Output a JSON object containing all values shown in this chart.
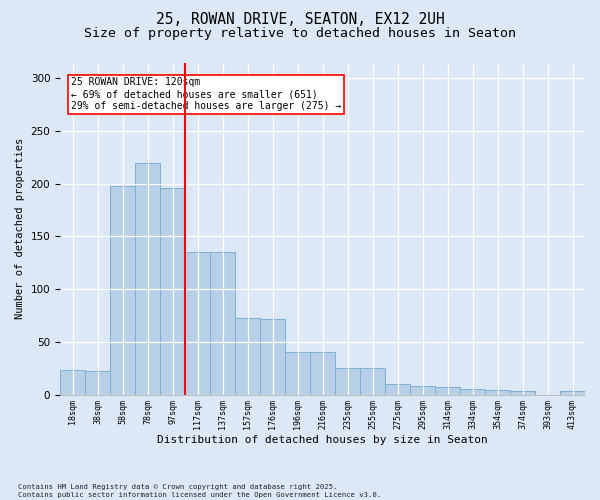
{
  "title1": "25, ROWAN DRIVE, SEATON, EX12 2UH",
  "title2": "Size of property relative to detached houses in Seaton",
  "xlabel": "Distribution of detached houses by size in Seaton",
  "ylabel": "Number of detached properties",
  "categories": [
    "18sqm",
    "38sqm",
    "58sqm",
    "78sqm",
    "97sqm",
    "117sqm",
    "137sqm",
    "157sqm",
    "176sqm",
    "196sqm",
    "216sqm",
    "235sqm",
    "255sqm",
    "275sqm",
    "295sqm",
    "314sqm",
    "334sqm",
    "354sqm",
    "374sqm",
    "393sqm",
    "413sqm"
  ],
  "values": [
    23,
    22,
    198,
    220,
    196,
    135,
    135,
    73,
    72,
    40,
    40,
    25,
    25,
    10,
    8,
    7,
    5,
    4,
    3,
    0,
    3
  ],
  "bar_color": "#b8cfe8",
  "bar_edge_color": "#7aafd4",
  "vline_x": 4.5,
  "vline_color": "red",
  "annotation_text": "25 ROWAN DRIVE: 120sqm\n← 69% of detached houses are smaller (651)\n29% of semi-detached houses are larger (275) →",
  "annotation_box_color": "white",
  "annotation_box_edge": "red",
  "footnote": "Contains HM Land Registry data © Crown copyright and database right 2025.\nContains public sector information licensed under the Open Government Licence v3.0.",
  "background_color": "#dce8f5",
  "ylim": [
    0,
    315
  ],
  "yticks": [
    0,
    50,
    100,
    150,
    200,
    250,
    300
  ],
  "title_fontsize": 10.5,
  "subtitle_fontsize": 9.5
}
